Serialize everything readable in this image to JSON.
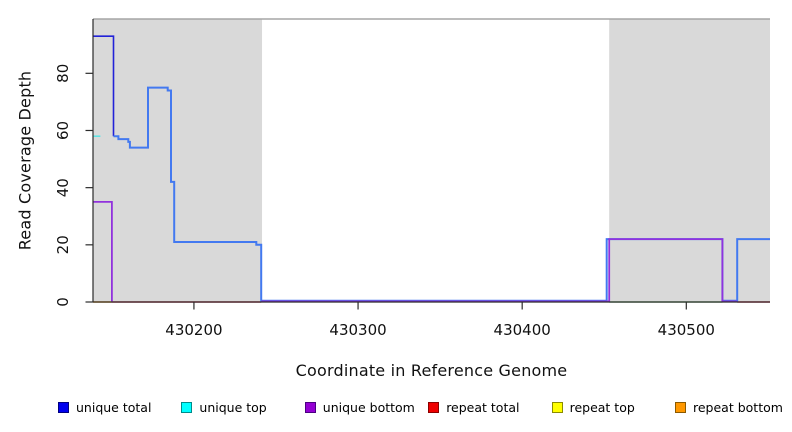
{
  "axis_titles": {
    "x": "Coordinate in Reference Genome",
    "y": "Read Coverage Depth"
  },
  "chart_data": {
    "type": "line",
    "title": "",
    "xlabel": "Coordinate in Reference Genome",
    "ylabel": "Read Coverage Depth",
    "xlim": [
      430138.5,
      430551
    ],
    "ylim": [
      0,
      99
    ],
    "grid": false,
    "legend_position": "bottom",
    "background_color": "#ffffff",
    "shaded_region_color": "#d9d9d9",
    "top_border_color": "#a6a6a6",
    "axis_color": "#2b2b2b",
    "tick_label_color": "#111111",
    "xticks": [
      {
        "value": 430200,
        "label": "430200"
      },
      {
        "value": 430300,
        "label": "430300"
      },
      {
        "value": 430400,
        "label": "430400"
      },
      {
        "value": 430500,
        "label": "430500"
      }
    ],
    "yticks": [
      {
        "value": 0,
        "label": "0"
      },
      {
        "value": 20,
        "label": "20"
      },
      {
        "value": 40,
        "label": "40"
      },
      {
        "value": 60,
        "label": "60"
      },
      {
        "value": 80,
        "label": "80"
      }
    ],
    "shaded_regions": [
      {
        "x0": 430138.5,
        "x1": 430241.5
      },
      {
        "x0": 430453,
        "x1": 430551
      }
    ],
    "series": [
      {
        "name": "repeat-bottom-line",
        "color": "#ffa726",
        "width": 1.5,
        "points": [
          [
            430138.5,
            0
          ],
          [
            430150,
            0
          ]
        ]
      },
      {
        "name": "repeat-total-line-left",
        "color": "#e9445e",
        "width": 1.5,
        "points": [
          [
            430150,
            0
          ],
          [
            430241,
            0
          ]
        ]
      },
      {
        "name": "repeat-total-line-right",
        "color": "#e9445e",
        "width": 1.5,
        "points": [
          [
            430531,
            0
          ],
          [
            430551,
            0
          ]
        ]
      },
      {
        "name": "top-strand-overlap-line",
        "color": "#8fce8f",
        "width": 1.5,
        "points": [
          [
            430453,
            0
          ],
          [
            430522,
            0
          ]
        ]
      },
      {
        "name": "unique-top-line",
        "color": "#5ae4e4",
        "width": 1.5,
        "points": [
          [
            430138.5,
            58
          ],
          [
            430143,
            58
          ]
        ]
      },
      {
        "name": "unique-total-peak-line",
        "color": "#2222d8",
        "width": 1.6,
        "points": [
          [
            430138.5,
            93
          ],
          [
            430151,
            93
          ],
          [
            430151,
            58
          ]
        ]
      },
      {
        "name": "coverage-main-line",
        "color": "#4379f0",
        "width": 2,
        "points": [
          [
            430151,
            58
          ],
          [
            430154,
            58
          ],
          [
            430154,
            57
          ],
          [
            430160,
            57
          ],
          [
            430160,
            56
          ],
          [
            430161,
            56
          ],
          [
            430161,
            54
          ],
          [
            430172,
            54
          ],
          [
            430172,
            75
          ],
          [
            430184,
            75
          ],
          [
            430184,
            74
          ],
          [
            430186,
            74
          ],
          [
            430186,
            42
          ],
          [
            430188,
            42
          ],
          [
            430188,
            21
          ],
          [
            430238,
            21
          ],
          [
            430238,
            20
          ],
          [
            430241,
            20
          ],
          [
            430241,
            0.45
          ],
          [
            430451.5,
            0.45
          ],
          [
            430451.5,
            22
          ],
          [
            430522,
            22
          ],
          [
            430522,
            0.45
          ],
          [
            430531,
            0.45
          ],
          [
            430531,
            22
          ],
          [
            430551,
            22
          ]
        ]
      },
      {
        "name": "unique-bottom-peak-line",
        "color": "#9132dd",
        "width": 1.8,
        "points": [
          [
            430138.5,
            35
          ],
          [
            430150,
            35
          ],
          [
            430150,
            0.2
          ]
        ]
      },
      {
        "name": "unique-bottom-block-line",
        "color": "#9132dd",
        "width": 1.8,
        "points": [
          [
            430241,
            0.2
          ],
          [
            430453,
            0.2
          ],
          [
            430453,
            22
          ],
          [
            430522,
            22
          ],
          [
            430522,
            0.2
          ],
          [
            430531,
            0.2
          ]
        ]
      }
    ],
    "legend": [
      {
        "label": "unique total",
        "fill": "#0000ee",
        "border": "#000080"
      },
      {
        "label": "unique top",
        "fill": "#00ffff",
        "border": "#008b8b"
      },
      {
        "label": "unique bottom",
        "fill": "#9400d3",
        "border": "#4b0082"
      },
      {
        "label": "repeat total",
        "fill": "#ee0000",
        "border": "#8b0000"
      },
      {
        "label": "repeat top",
        "fill": "#ffff00",
        "border": "#8b8b00"
      },
      {
        "label": "repeat bottom",
        "fill": "#ff9800",
        "border": "#8b5a00"
      }
    ]
  }
}
